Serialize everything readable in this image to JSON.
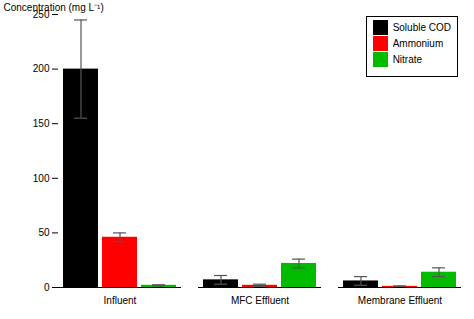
{
  "chart_data": {
    "type": "bar",
    "categories": [
      "Influent",
      "MFC Effluent",
      "Membrane Effluent"
    ],
    "series": [
      {
        "name": "Soluble COD",
        "color": "#000000",
        "values": [
          200,
          7,
          6
        ],
        "errors": [
          45,
          4,
          4
        ]
      },
      {
        "name": "Ammonium",
        "color": "#ff0000",
        "values": [
          46,
          2,
          1
        ],
        "errors": [
          4,
          1,
          0.5
        ]
      },
      {
        "name": "Nitrate",
        "color": "#00bb00",
        "values": [
          2,
          22,
          14
        ],
        "errors": [
          0.5,
          4,
          4
        ]
      }
    ],
    "ylabel": "Concentration (mg L⁻¹)",
    "ylim": [
      0,
      250
    ],
    "yticks": [
      0,
      50,
      100,
      150,
      200,
      250
    ],
    "grid": false,
    "legend": "upper right"
  }
}
